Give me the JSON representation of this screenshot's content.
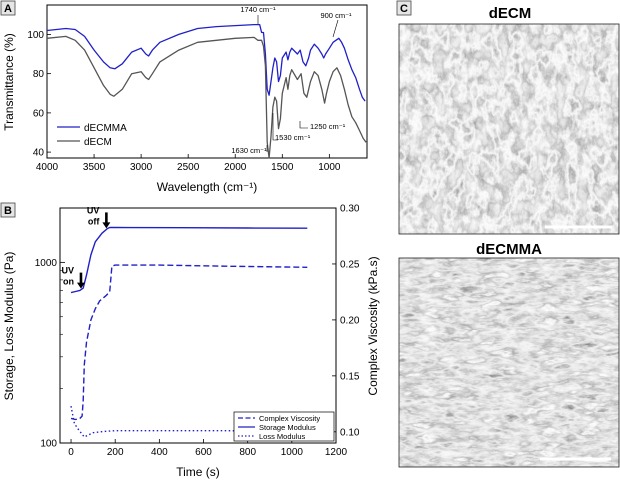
{
  "panel_labels": [
    "A",
    "B",
    "C"
  ],
  "chart_data": [
    {
      "type": "line",
      "panel": "A",
      "xlabel": "Wavelength (cm⁻¹)",
      "ylabel": "Transmittance (%)",
      "xlim": [
        4000,
        600
      ],
      "ylim": [
        37,
        115
      ],
      "x_ticks": [
        4000,
        3500,
        3000,
        2500,
        2000,
        1500,
        1000
      ],
      "y_ticks": [
        40,
        60,
        80,
        100
      ],
      "legend": [
        "dECMMA",
        "dECM"
      ],
      "annotations": [
        "1740 cm⁻¹",
        "900 cm⁻¹",
        "1630 cm⁻¹",
        "1530 cm⁻¹",
        "1250 cm⁻¹"
      ],
      "series": [
        {
          "name": "dECMMA",
          "color": "#2020c8",
          "points": [
            [
              4000,
              102
            ],
            [
              3800,
              103
            ],
            [
              3700,
              102.5
            ],
            [
              3600,
              99
            ],
            [
              3500,
              92
            ],
            [
              3400,
              86
            ],
            [
              3330,
              83
            ],
            [
              3280,
              82.5
            ],
            [
              3200,
              85
            ],
            [
              3100,
              91
            ],
            [
              3000,
              93
            ],
            [
              2950,
              90
            ],
            [
              2920,
              89
            ],
            [
              2880,
              92
            ],
            [
              2800,
              96
            ],
            [
              2600,
              100
            ],
            [
              2400,
              103
            ],
            [
              2200,
              104
            ],
            [
              2000,
              104.5
            ],
            [
              1800,
              105
            ],
            [
              1760,
              105
            ],
            [
              1740,
              105
            ],
            [
              1720,
              101
            ],
            [
              1700,
              101
            ],
            [
              1680,
              90
            ],
            [
              1660,
              72
            ],
            [
              1640,
              69
            ],
            [
              1620,
              76
            ],
            [
              1600,
              83
            ],
            [
              1580,
              88
            ],
            [
              1560,
              86
            ],
            [
              1540,
              76
            ],
            [
              1520,
              79
            ],
            [
              1500,
              88
            ],
            [
              1460,
              91
            ],
            [
              1440,
              87
            ],
            [
              1420,
              91
            ],
            [
              1400,
              93
            ],
            [
              1340,
              90
            ],
            [
              1310,
              92
            ],
            [
              1280,
              86
            ],
            [
              1250,
              84
            ],
            [
              1220,
              88
            ],
            [
              1200,
              92
            ],
            [
              1160,
              95
            ],
            [
              1120,
              93
            ],
            [
              1080,
              90
            ],
            [
              1060,
              88
            ],
            [
              1040,
              90
            ],
            [
              1000,
              93
            ],
            [
              960,
              96
            ],
            [
              930,
              97
            ],
            [
              900,
              98
            ],
            [
              870,
              96
            ],
            [
              840,
              93
            ],
            [
              800,
              87
            ],
            [
              760,
              82
            ],
            [
              720,
              78
            ],
            [
              680,
              72
            ],
            [
              650,
              68
            ],
            [
              620,
              66
            ]
          ]
        },
        {
          "name": "dECM",
          "color": "#555555",
          "points": [
            [
              4000,
              98
            ],
            [
              3800,
              99
            ],
            [
              3700,
              97
            ],
            [
              3600,
              92
            ],
            [
              3500,
              83
            ],
            [
              3400,
              74
            ],
            [
              3330,
              69.5
            ],
            [
              3290,
              68.5
            ],
            [
              3200,
              72
            ],
            [
              3100,
              80
            ],
            [
              3000,
              81
            ],
            [
              2950,
              78
            ],
            [
              2920,
              77
            ],
            [
              2880,
              80
            ],
            [
              2800,
              86
            ],
            [
              2600,
              92
            ],
            [
              2400,
              96
            ],
            [
              2200,
              97
            ],
            [
              2000,
              98
            ],
            [
              1800,
              98.5
            ],
            [
              1760,
              97
            ],
            [
              1720,
              97
            ],
            [
              1700,
              94
            ],
            [
              1680,
              84
            ],
            [
              1660,
              45
            ],
            [
              1640,
              37
            ],
            [
              1620,
              48
            ],
            [
              1600,
              63
            ],
            [
              1580,
              68
            ],
            [
              1560,
              66
            ],
            [
              1540,
              52
            ],
            [
              1520,
              57
            ],
            [
              1500,
              70
            ],
            [
              1460,
              78
            ],
            [
              1440,
              72
            ],
            [
              1420,
              79
            ],
            [
              1400,
              82
            ],
            [
              1340,
              77
            ],
            [
              1300,
              80
            ],
            [
              1270,
              70
            ],
            [
              1240,
              68
            ],
            [
              1200,
              76
            ],
            [
              1160,
              81
            ],
            [
              1120,
              79
            ],
            [
              1080,
              72
            ],
            [
              1050,
              65
            ],
            [
              1030,
              70
            ],
            [
              1000,
              76
            ],
            [
              960,
              81
            ],
            [
              920,
              83
            ],
            [
              880,
              79
            ],
            [
              840,
              72
            ],
            [
              800,
              64
            ],
            [
              760,
              58
            ],
            [
              720,
              55
            ],
            [
              680,
              51
            ],
            [
              640,
              47
            ],
            [
              610,
              45
            ]
          ]
        }
      ]
    },
    {
      "type": "line",
      "panel": "B",
      "xlabel": "Time (s)",
      "ylabel": "Storage, Loss Modulus (Pa)",
      "ylabel_right": "Complex Viscosity (kPa.s)",
      "xlim": [
        -50,
        1200
      ],
      "ylim_log": [
        100,
        2000
      ],
      "ylim_right": [
        0.09,
        0.3
      ],
      "x_ticks": [
        0,
        200,
        400,
        600,
        800,
        1000,
        1200
      ],
      "y_ticks_labels": [
        "100",
        "1000"
      ],
      "y2_ticks": [
        "0.10",
        "0.15",
        "0.20",
        "0.25",
        "0.30"
      ],
      "annotations": [
        {
          "text": [
            "UV",
            "on"
          ],
          "time": 45
        },
        {
          "text": [
            "UV",
            "off"
          ],
          "time": 160
        }
      ],
      "legend": [
        "Complex Viscosity",
        "Storage Modulus",
        "Loss Modulus"
      ],
      "series": [
        {
          "name": "Storage Modulus",
          "axis": "left",
          "style": "solid",
          "color": "#2020c8",
          "points": [
            [
              0,
              680
            ],
            [
              20,
              690
            ],
            [
              40,
              700
            ],
            [
              55,
              720
            ],
            [
              70,
              850
            ],
            [
              90,
              1100
            ],
            [
              110,
              1300
            ],
            [
              140,
              1450
            ],
            [
              165,
              1540
            ],
            [
              175,
              1560
            ],
            [
              200,
              1560
            ],
            [
              500,
              1555
            ],
            [
              800,
              1550
            ],
            [
              1070,
              1545
            ]
          ]
        },
        {
          "name": "Complex Viscosity",
          "axis": "right",
          "style": "dashed",
          "color": "#2020c8",
          "points": [
            [
              0,
              0.112
            ],
            [
              20,
              0.111
            ],
            [
              40,
              0.112
            ],
            [
              50,
              0.114
            ],
            [
              55,
              0.128
            ],
            [
              60,
              0.16
            ],
            [
              70,
              0.18
            ],
            [
              90,
              0.2
            ],
            [
              110,
              0.21
            ],
            [
              130,
              0.217
            ],
            [
              160,
              0.222
            ],
            [
              175,
              0.225
            ],
            [
              185,
              0.248
            ],
            [
              200,
              0.249
            ],
            [
              400,
              0.249
            ],
            [
              700,
              0.248
            ],
            [
              1070,
              0.247
            ]
          ]
        },
        {
          "name": "Loss Modulus",
          "axis": "left",
          "style": "dotted",
          "color": "#2020c8",
          "points": [
            [
              0,
              160
            ],
            [
              15,
              128
            ],
            [
              35,
              118
            ],
            [
              60,
              108
            ],
            [
              100,
              114
            ],
            [
              150,
              116
            ],
            [
              200,
              117
            ],
            [
              400,
              117
            ],
            [
              700,
              117
            ],
            [
              1070,
              116
            ]
          ]
        }
      ]
    }
  ],
  "sem_images": [
    {
      "title": "dECM"
    },
    {
      "title": "dECMMA"
    }
  ]
}
